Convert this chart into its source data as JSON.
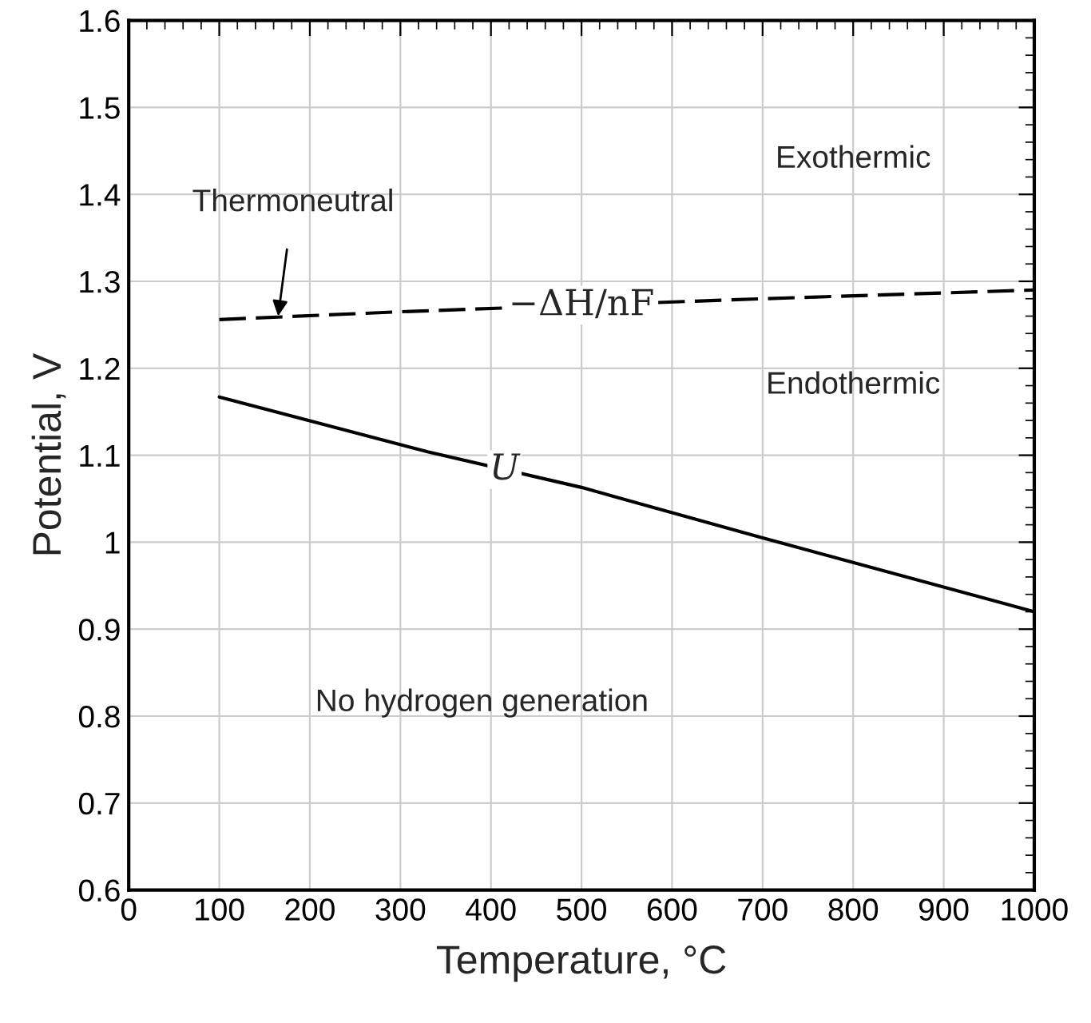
{
  "chart_data": {
    "type": "line",
    "xlabel": "Temperature, °C",
    "ylabel": "Potential, V",
    "xlim": [
      0,
      1000
    ],
    "ylim": [
      0.6,
      1.6
    ],
    "xticks": [
      0,
      100,
      200,
      300,
      400,
      500,
      600,
      700,
      800,
      900,
      1000
    ],
    "yticks": [
      0.6,
      0.7,
      0.8,
      0.9,
      1,
      1.1,
      1.2,
      1.3,
      1.4,
      1.5,
      1.6
    ],
    "grid": true,
    "legend": false,
    "series": [
      {
        "name": "−ΔH/nF",
        "color": "#000000",
        "line_style": "dashed",
        "x": [
          100,
          300,
          700,
          1000
        ],
        "values": [
          1.256,
          1.265,
          1.28,
          1.29
        ]
      },
      {
        "name": "U",
        "color": "#000000",
        "line_style": "solid",
        "x": [
          100,
          330,
          500,
          700,
          1000
        ],
        "values": [
          1.167,
          1.104,
          1.063,
          1.005,
          0.92
        ]
      }
    ],
    "annotations": [
      {
        "text": "Thermoneutral",
        "x": 165,
        "y": 1.26
      },
      "Exothermic",
      "Endothermic",
      "No hydrogen generation"
    ]
  }
}
